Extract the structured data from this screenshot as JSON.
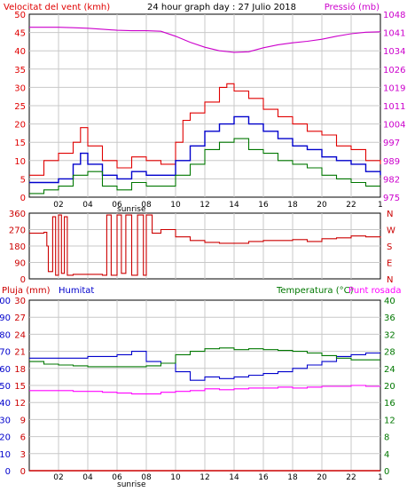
{
  "header": {
    "left_title": "Velocitat del vent (kmh)",
    "center_title": "24 hour graph day : 27 Julio 2018",
    "right_title": "Pressió (mb)"
  },
  "labels": {
    "sunrise": "sunrise",
    "rain": "Pluja (mm)",
    "humidity": "Humitat",
    "temperature": "Temperatura (°C)",
    "dewpoint": "Punt rosada"
  },
  "colors": {
    "gust": "#e00000",
    "wind": "#0000cc",
    "green": "#007700",
    "pressure": "#cc00cc",
    "direction": "#cc0000",
    "humidity": "#0000cc",
    "temperature": "#007700",
    "dew": "#ff00ff",
    "rain": "#cc0000",
    "grid": "#c8c8c8"
  },
  "chart_data": [
    {
      "type": "line",
      "name": "wind-speed-pressure",
      "x_ticks": [
        "02",
        "04",
        "06",
        "08",
        "10",
        "12",
        "14",
        "16",
        "18",
        "20",
        "22"
      ],
      "xlim": [
        0,
        24
      ],
      "y_left": {
        "label": "Velocitat del vent (kmh)",
        "ylim": [
          0,
          50
        ],
        "ticks": [
          0,
          5,
          10,
          15,
          20,
          25,
          30,
          35,
          40,
          45,
          50
        ]
      },
      "y_right": {
        "label": "Pressió (mb)",
        "ylim": [
          975,
          1048
        ],
        "ticks": [
          975,
          982,
          989,
          997,
          1004,
          1011,
          1019,
          1026,
          1034,
          1041,
          1048
        ]
      },
      "series": [
        {
          "name": "gust",
          "axis": "left",
          "x": [
            0,
            1,
            2,
            3,
            3.5,
            4,
            5,
            6,
            7,
            8,
            9,
            10,
            10.5,
            11,
            12,
            13,
            13.5,
            14,
            15,
            16,
            17,
            18,
            19,
            20,
            21,
            22,
            23,
            24
          ],
          "y": [
            6,
            10,
            12,
            15,
            19,
            14,
            10,
            8,
            11,
            10,
            9,
            15,
            21,
            23,
            26,
            30,
            31,
            29,
            27,
            24,
            22,
            20,
            18,
            17,
            14,
            13,
            10,
            9
          ]
        },
        {
          "name": "average",
          "axis": "left",
          "x": [
            0,
            1,
            2,
            3,
            3.5,
            4,
            5,
            6,
            7,
            8,
            9,
            10,
            11,
            12,
            13,
            14,
            15,
            16,
            17,
            18,
            19,
            20,
            21,
            22,
            23,
            24
          ],
          "y": [
            4,
            4,
            5,
            9,
            12,
            9,
            6,
            5,
            7,
            6,
            6,
            10,
            14,
            18,
            20,
            22,
            20,
            18,
            16,
            14,
            13,
            11,
            10,
            9,
            7,
            6
          ]
        },
        {
          "name": "green",
          "axis": "left",
          "x": [
            0,
            1,
            2,
            3,
            4,
            5,
            6,
            7,
            8,
            9,
            10,
            11,
            12,
            13,
            14,
            15,
            16,
            17,
            18,
            19,
            20,
            21,
            22,
            23,
            24
          ],
          "y": [
            1,
            2,
            3,
            6,
            7,
            3,
            2,
            4,
            3,
            3,
            6,
            9,
            13,
            15,
            16,
            13,
            12,
            10,
            9,
            8,
            6,
            5,
            4,
            3,
            3
          ]
        },
        {
          "name": "pressure",
          "axis": "right",
          "x": [
            0,
            1,
            2,
            3,
            4,
            5,
            6,
            7,
            8,
            9,
            10,
            11,
            12,
            13,
            14,
            15,
            16,
            17,
            18,
            19,
            20,
            21,
            22,
            23,
            24
          ],
          "y": [
            1042.8,
            1042.8,
            1042.8,
            1042.6,
            1042.4,
            1042.0,
            1041.6,
            1041.4,
            1041.4,
            1041.2,
            1039.2,
            1036.8,
            1034.8,
            1033.4,
            1032.8,
            1033.0,
            1034.6,
            1035.8,
            1036.6,
            1037.2,
            1038.0,
            1039.2,
            1040.2,
            1040.8,
            1041.0
          ]
        }
      ]
    },
    {
      "type": "line",
      "name": "wind-direction",
      "y_ticks": [
        0,
        90,
        180,
        270,
        360
      ],
      "compass": [
        "N",
        "W",
        "S",
        "E",
        "N"
      ],
      "ylim": [
        0,
        360
      ],
      "series": [
        {
          "name": "direction",
          "x": [
            0,
            1,
            1.2,
            1.3,
            1.6,
            1.8,
            2,
            2.2,
            2.4,
            2.6,
            3,
            4,
            5,
            5.3,
            5.6,
            6.0,
            6.3,
            6.6,
            7.0,
            7.4,
            7.8,
            8.0,
            8.4,
            9,
            10,
            11,
            12,
            13,
            14,
            15,
            16,
            17,
            18,
            19,
            20,
            21,
            22,
            23,
            24
          ],
          "y": [
            250,
            255,
            180,
            40,
            340,
            20,
            350,
            30,
            340,
            20,
            25,
            25,
            20,
            350,
            20,
            350,
            30,
            350,
            20,
            350,
            20,
            350,
            250,
            270,
            230,
            210,
            200,
            195,
            195,
            205,
            210,
            210,
            215,
            205,
            220,
            225,
            235,
            230,
            225
          ]
        }
      ]
    },
    {
      "type": "line",
      "name": "humidity-temperature",
      "x_ticks": [
        "02",
        "04",
        "06",
        "08",
        "10",
        "12",
        "14",
        "16",
        "18",
        "20",
        "22"
      ],
      "xlim": [
        0,
        24
      ],
      "y_left_rain": {
        "label": "Pluja (mm)",
        "ticks": [
          0,
          3,
          6,
          9,
          12,
          15,
          18,
          21,
          24,
          27,
          30
        ]
      },
      "y_left_humidity": {
        "label": "Humitat",
        "ticks": [
          0,
          10,
          20,
          30,
          40,
          50,
          60,
          70,
          80,
          90,
          100
        ]
      },
      "y_right": {
        "label": "Temperatura (°C)",
        "ylim": [
          0,
          40
        ],
        "ticks": [
          0,
          4,
          8,
          12,
          16,
          20,
          24,
          28,
          32,
          36,
          40
        ]
      },
      "series": [
        {
          "name": "humidity",
          "axis": "humidity",
          "x": [
            0,
            1,
            2,
            3,
            4,
            5,
            6,
            7,
            8,
            9,
            10,
            11,
            12,
            13,
            14,
            15,
            16,
            17,
            18,
            19,
            20,
            21,
            22,
            23,
            24
          ],
          "y": [
            66,
            66,
            66,
            66,
            67,
            67,
            68,
            70,
            64,
            63,
            58,
            53,
            55,
            54,
            55,
            56,
            57,
            58,
            60,
            62,
            64,
            67,
            68,
            69,
            69
          ]
        },
        {
          "name": "temperature",
          "axis": "right",
          "x": [
            0,
            1,
            2,
            3,
            4,
            5,
            6,
            7,
            8,
            9,
            10,
            11,
            12,
            13,
            14,
            15,
            16,
            17,
            18,
            19,
            20,
            21,
            22,
            23,
            24
          ],
          "y": [
            25.6,
            25.0,
            24.8,
            24.6,
            24.4,
            24.4,
            24.4,
            24.4,
            24.6,
            25.2,
            27.2,
            28.0,
            28.6,
            28.8,
            28.4,
            28.6,
            28.4,
            28.2,
            28.0,
            27.6,
            27.0,
            26.4,
            26.0,
            26.0,
            26.0
          ]
        },
        {
          "name": "dewpoint",
          "axis": "right",
          "x": [
            0,
            1,
            2,
            3,
            4,
            5,
            6,
            7,
            8,
            9,
            10,
            11,
            12,
            13,
            14,
            15,
            16,
            17,
            18,
            19,
            20,
            21,
            22,
            23,
            24
          ],
          "y": [
            18.8,
            18.8,
            18.8,
            18.6,
            18.6,
            18.4,
            18.2,
            18.0,
            18.0,
            18.4,
            18.6,
            18.8,
            19.2,
            19.0,
            19.2,
            19.4,
            19.4,
            19.6,
            19.4,
            19.6,
            19.8,
            19.8,
            20.0,
            19.8,
            19.8
          ]
        },
        {
          "name": "rain",
          "axis": "rain",
          "x": [
            0,
            24
          ],
          "y": [
            0,
            0
          ]
        }
      ]
    }
  ]
}
